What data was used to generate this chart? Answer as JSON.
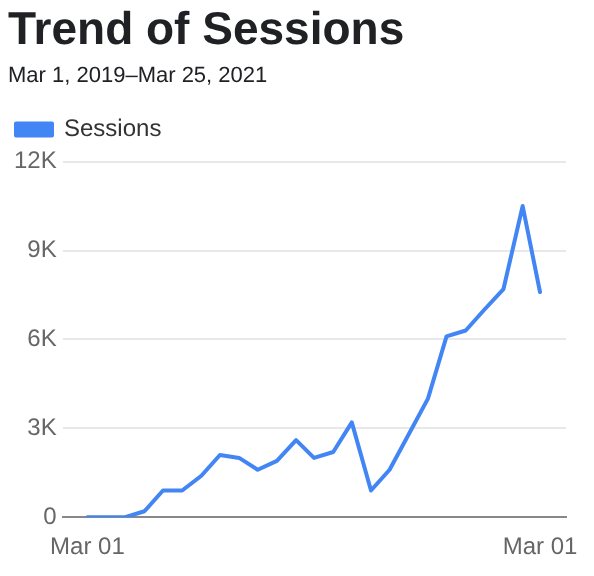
{
  "chart_data": {
    "type": "line",
    "title": "Trend of Sessions",
    "subtitle": "Mar 1, 2019–Mar 25, 2021",
    "x": [
      "2019-03-01",
      "2019-04-01",
      "2019-05-01",
      "2019-06-01",
      "2019-07-01",
      "2019-08-01",
      "2019-09-01",
      "2019-10-01",
      "2019-11-01",
      "2019-12-01",
      "2020-01-01",
      "2020-02-01",
      "2020-03-01",
      "2020-04-01",
      "2020-05-01",
      "2020-06-01",
      "2020-07-01",
      "2020-08-01",
      "2020-09-01",
      "2020-10-01",
      "2020-11-01",
      "2020-12-01",
      "2021-01-01",
      "2021-02-01",
      "2021-03-01"
    ],
    "series": [
      {
        "name": "Sessions",
        "color": "#4285f4",
        "values": [
          0,
          0,
          0,
          200,
          900,
          900,
          1400,
          2100,
          2000,
          1600,
          1900,
          2600,
          2000,
          2200,
          3200,
          900,
          1600,
          2800,
          4000,
          6100,
          6300,
          7000,
          7700,
          10500,
          7600
        ]
      }
    ],
    "xlim": [
      "2019-01-20",
      "2021-04-12"
    ],
    "xticks": [
      {
        "value": "2019-03-01",
        "label": "Mar 01"
      },
      {
        "value": "2021-03-01",
        "label": "Mar 01"
      }
    ],
    "ylim": [
      0,
      12000
    ],
    "yticks": [
      {
        "value": 0,
        "label": "0"
      },
      {
        "value": 3000,
        "label": "3K"
      },
      {
        "value": 6000,
        "label": "6K"
      },
      {
        "value": 9000,
        "label": "9K"
      },
      {
        "value": 12000,
        "label": "12K"
      }
    ],
    "grid": "y",
    "legend": "top left",
    "marker": "none",
    "line_style": "solid"
  }
}
